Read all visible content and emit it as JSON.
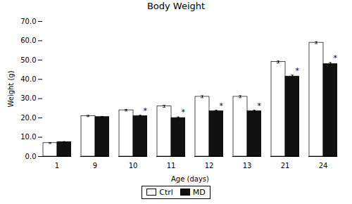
{
  "chart_data": {
    "type": "bar",
    "title": "Body Weight",
    "xlabel": "Age (days)",
    "ylabel": "Weight (g)",
    "categories": [
      "1",
      "9",
      "10",
      "11",
      "12",
      "13",
      "21",
      "24"
    ],
    "series": [
      {
        "name": "Ctrl",
        "color": "#ffffff",
        "values": [
          7.0,
          21.0,
          24.0,
          26.0,
          31.0,
          31.0,
          49.0,
          59.0
        ],
        "sem": [
          0.25,
          0.3,
          0.4,
          0.5,
          0.5,
          0.5,
          0.5,
          0.5
        ]
      },
      {
        "name": "MD",
        "color": "#111111",
        "values": [
          7.5,
          20.5,
          21.0,
          20.0,
          23.5,
          23.5,
          41.5,
          48.0
        ],
        "sem": [
          0.25,
          0.3,
          0.4,
          0.5,
          0.5,
          0.5,
          0.7,
          0.7
        ],
        "significance": [
          null,
          null,
          "*",
          "*",
          "*",
          "*",
          "*",
          "*"
        ]
      }
    ],
    "ylim": [
      0.0,
      70.0
    ],
    "yticks": [
      {
        "value": 0,
        "label": "0.0"
      },
      {
        "value": 10,
        "label": "10.0"
      },
      {
        "value": 20,
        "label": "20.0"
      },
      {
        "value": 30,
        "label": "30.0"
      },
      {
        "value": 40,
        "label": "40.0"
      },
      {
        "value": 50,
        "label": "50.0"
      },
      {
        "value": 60,
        "label": "60.0"
      },
      {
        "value": 70,
        "label": "70.0"
      }
    ],
    "grid": false,
    "legend": "bottom"
  }
}
